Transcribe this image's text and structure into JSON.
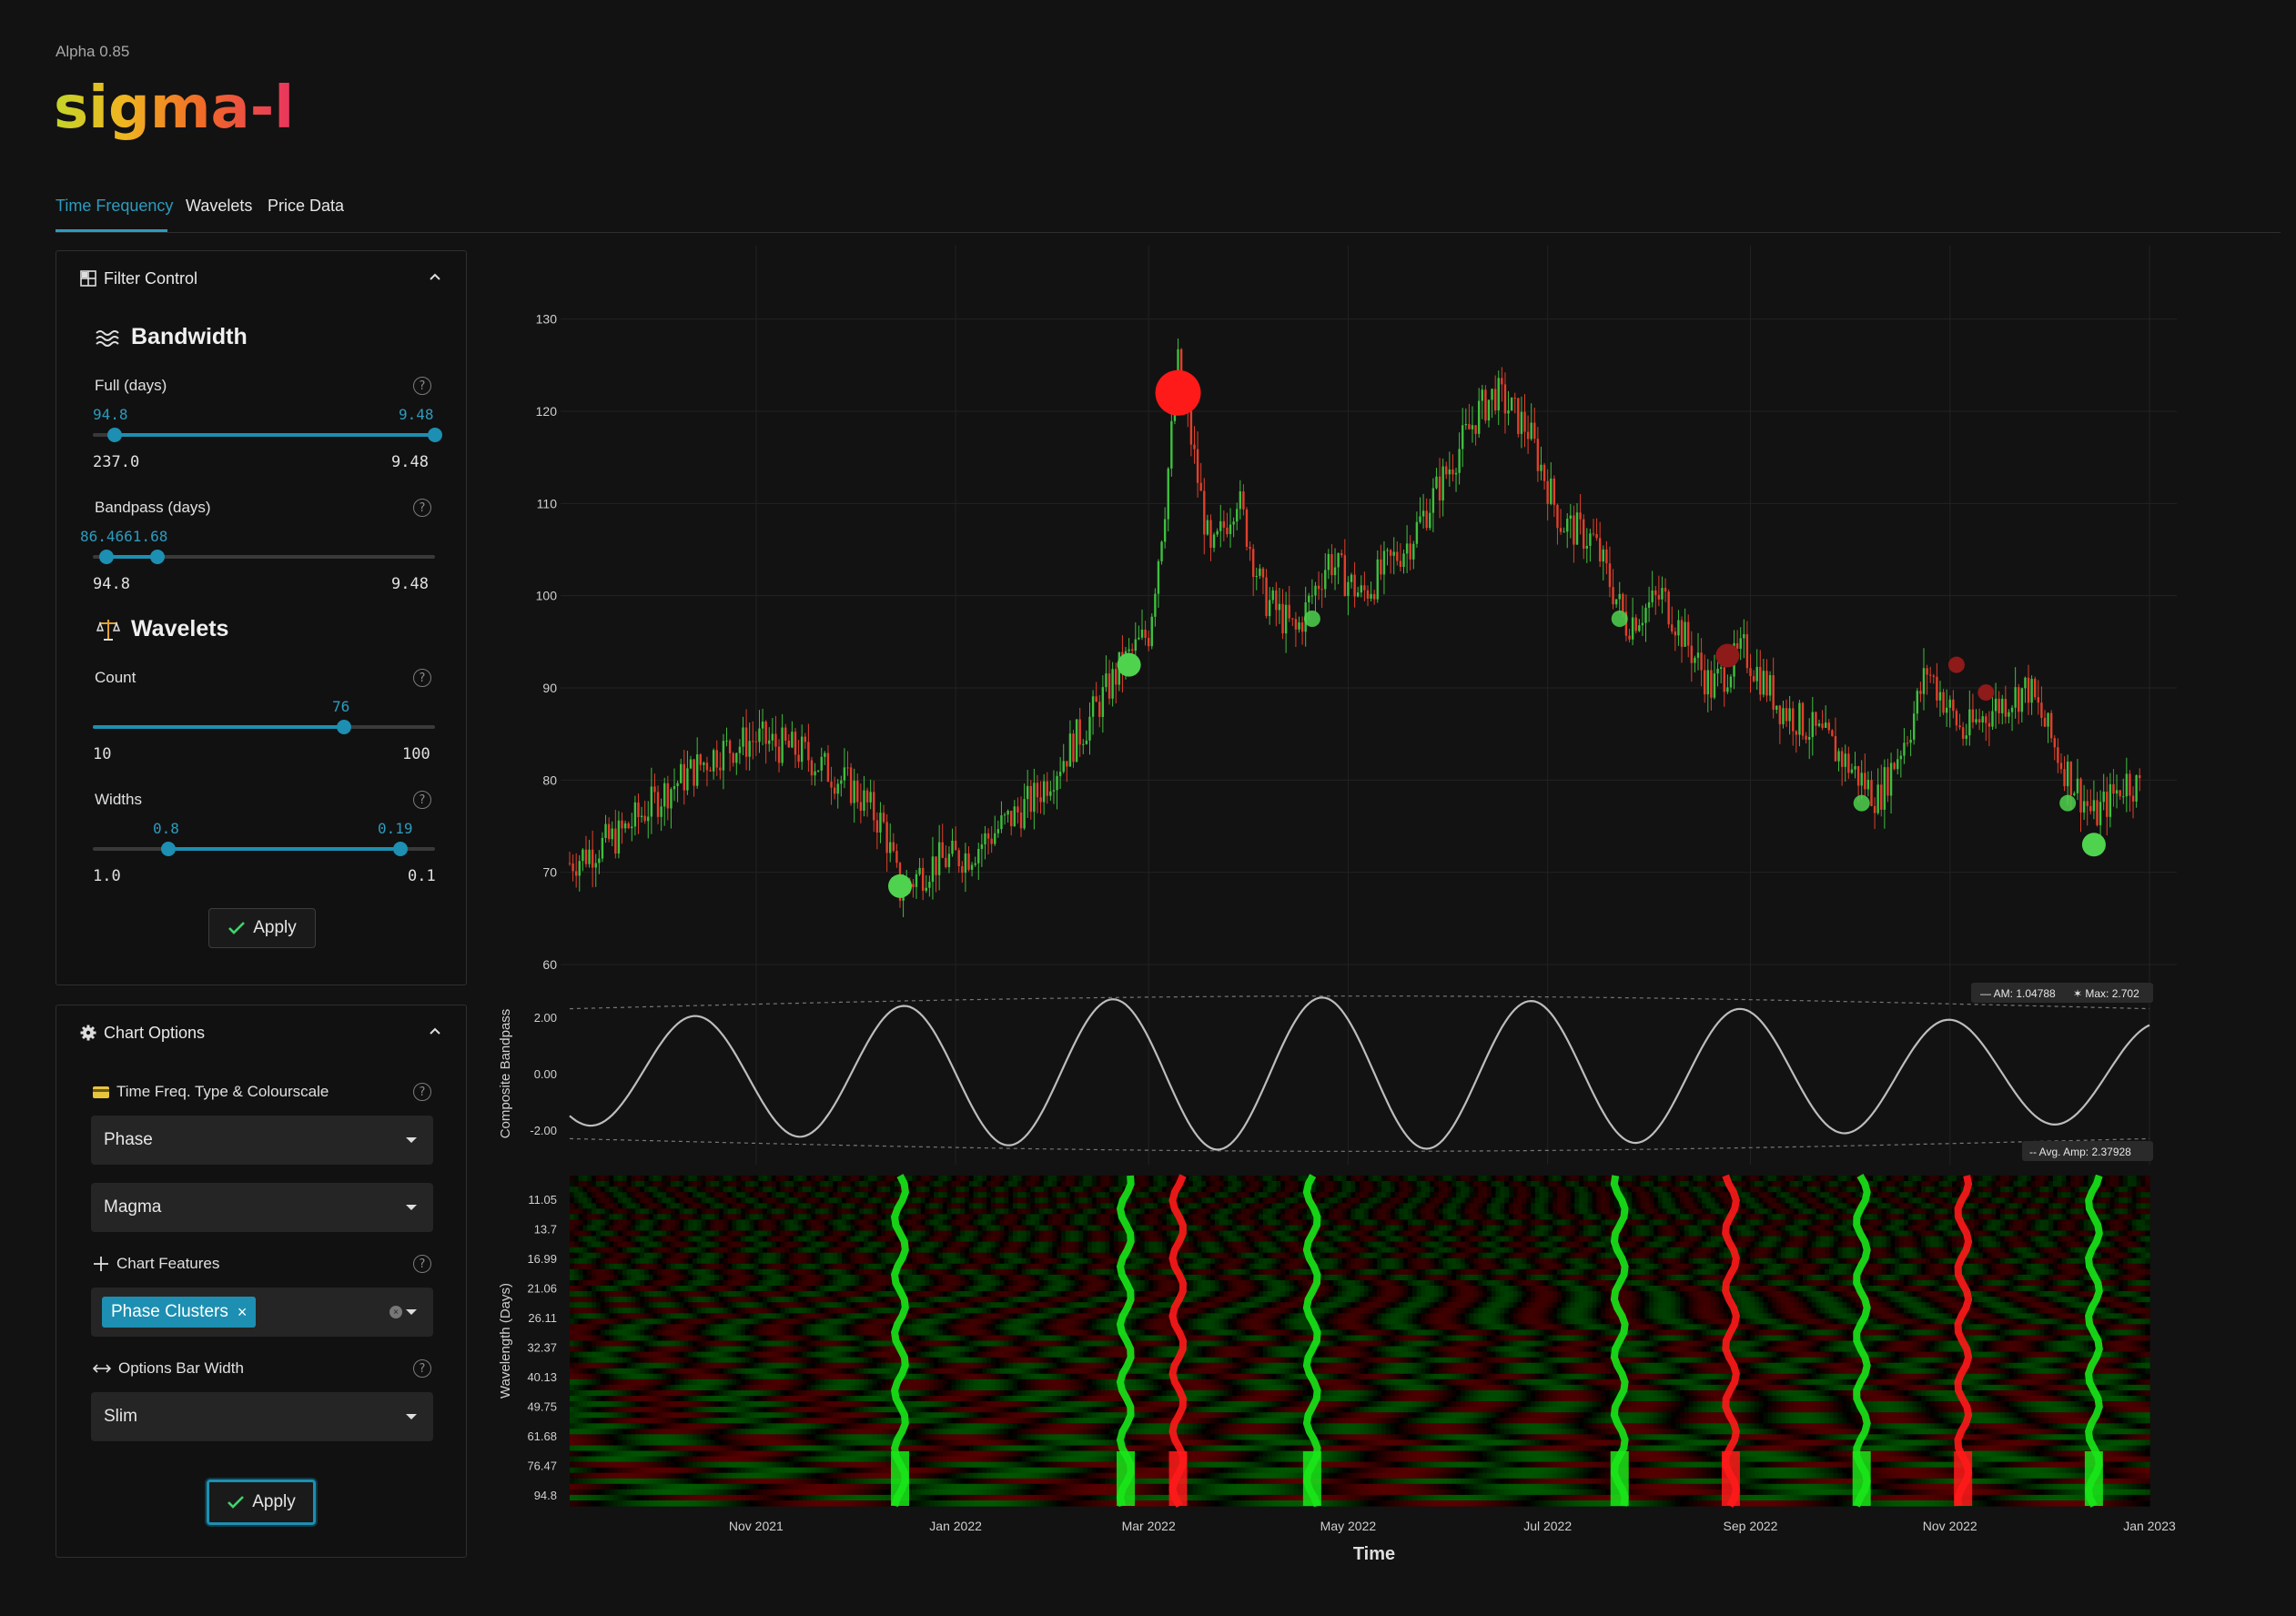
{
  "app": {
    "version": "Alpha 0.85",
    "logo": "sigma-l"
  },
  "tabs": [
    {
      "label": "Time Frequency",
      "active": true
    },
    {
      "label": "Wavelets",
      "active": false
    },
    {
      "label": "Price Data",
      "active": false
    }
  ],
  "filter_control": {
    "title": "Filter Control",
    "bandwidth": {
      "title": "Bandwidth",
      "full": {
        "label": "Full (days)",
        "value_left": "94.8",
        "value_right": "9.48",
        "min": "237.0",
        "max": "9.48",
        "range_fraction": [
          0.065,
          1.0
        ]
      },
      "bandpass": {
        "label": "Bandpass (days)",
        "value_text": "86.4661.68",
        "min": "94.8",
        "max": "9.48",
        "range_fraction": [
          0.04,
          0.19
        ]
      }
    },
    "wavelets": {
      "title": "Wavelets",
      "count": {
        "label": "Count",
        "value": "76",
        "min": "10",
        "max": "100",
        "fraction": 0.733
      },
      "widths": {
        "label": "Widths",
        "value_left": "0.8",
        "value_right": "0.19",
        "min": "1.0",
        "max": "0.1",
        "range_fraction": [
          0.222,
          0.9
        ]
      }
    },
    "apply_label": "Apply"
  },
  "chart_options": {
    "title": "Chart Options",
    "tf_type": {
      "label": "Time Freq. Type & Colourscale",
      "type_value": "Phase",
      "scale_value": "Magma"
    },
    "features": {
      "label": "Chart Features",
      "chips": [
        "Phase Clusters"
      ]
    },
    "bar_width": {
      "label": "Options Bar Width",
      "value": "Slim"
    },
    "apply_label": "Apply"
  },
  "colors": {
    "accent": "#1d8fb2",
    "up": "#3fbf3f",
    "down": "#e0402b",
    "marker_red": "#ff1a1a",
    "marker_green": "#4fd34f",
    "marker_dark_red": "#8e1a1a"
  },
  "chart_data": {
    "type": "candlestick",
    "x_range": [
      "2021-09-05",
      "2023-01-01"
    ],
    "x_ticks": [
      "Nov 2021",
      "Jan 2022",
      "Mar 2022",
      "May 2022",
      "Jul 2022",
      "Sep 2022",
      "Nov 2022",
      "Jan 2023"
    ],
    "x_tick_dates": [
      "2021-11-01",
      "2022-01-01",
      "2022-03-01",
      "2022-05-01",
      "2022-07-01",
      "2022-09-01",
      "2022-11-01",
      "2023-01-01"
    ],
    "x_label": "Time",
    "price": {
      "ylim": [
        60,
        135
      ],
      "yticks": [
        "60",
        "70",
        "80",
        "90",
        "100",
        "110",
        "120",
        "130"
      ],
      "path": [
        [
          "2021-09-05",
          71
        ],
        [
          "2021-09-20",
          74
        ],
        [
          "2021-10-05",
          79
        ],
        [
          "2021-10-20",
          83
        ],
        [
          "2021-11-01",
          84.5
        ],
        [
          "2021-11-15",
          83
        ],
        [
          "2021-12-01",
          79
        ],
        [
          "2021-12-10",
          75
        ],
        [
          "2021-12-15",
          68
        ],
        [
          "2021-12-25",
          71
        ],
        [
          "2022-01-05",
          72
        ],
        [
          "2022-01-25",
          78
        ],
        [
          "2022-02-10",
          86
        ],
        [
          "2022-02-20",
          92
        ],
        [
          "2022-03-01",
          96
        ],
        [
          "2022-03-06",
          110
        ],
        [
          "2022-03-10",
          125
        ],
        [
          "2022-03-14",
          117
        ],
        [
          "2022-03-20",
          104
        ],
        [
          "2022-03-28",
          111
        ],
        [
          "2022-04-05",
          100
        ],
        [
          "2022-04-15",
          96
        ],
        [
          "2022-04-25",
          104
        ],
        [
          "2022-05-05",
          100
        ],
        [
          "2022-05-20",
          106
        ],
        [
          "2022-06-01",
          114
        ],
        [
          "2022-06-10",
          120
        ],
        [
          "2022-06-15",
          122
        ],
        [
          "2022-06-25",
          118
        ],
        [
          "2022-07-05",
          108
        ],
        [
          "2022-07-15",
          106
        ],
        [
          "2022-07-25",
          97
        ],
        [
          "2022-08-05",
          100
        ],
        [
          "2022-08-20",
          90
        ],
        [
          "2022-08-30",
          94
        ],
        [
          "2022-09-10",
          88
        ],
        [
          "2022-09-25",
          84
        ],
        [
          "2022-10-10",
          78
        ],
        [
          "2022-10-20",
          86
        ],
        [
          "2022-10-25",
          92
        ],
        [
          "2022-11-05",
          85
        ],
        [
          "2022-11-15",
          88
        ],
        [
          "2022-11-25",
          90
        ],
        [
          "2022-12-05",
          82
        ],
        [
          "2022-12-15",
          76
        ],
        [
          "2022-12-25",
          80
        ],
        [
          "2023-01-01",
          78.5
        ]
      ],
      "markers": [
        {
          "date": "2021-12-15",
          "price": 68.5,
          "color": "green",
          "size": "medium"
        },
        {
          "date": "2022-02-23",
          "price": 92.5,
          "color": "green",
          "size": "medium"
        },
        {
          "date": "2022-03-10",
          "price": 122,
          "color": "red",
          "size": "large"
        },
        {
          "date": "2022-04-20",
          "price": 97.5,
          "color": "green",
          "size": "small"
        },
        {
          "date": "2022-07-23",
          "price": 97.5,
          "color": "green",
          "size": "small"
        },
        {
          "date": "2022-08-25",
          "price": 93.5,
          "color": "dark-red",
          "size": "medium"
        },
        {
          "date": "2022-10-05",
          "price": 77.5,
          "color": "green",
          "size": "small"
        },
        {
          "date": "2022-11-03",
          "price": 92.5,
          "color": "dark-red",
          "size": "small"
        },
        {
          "date": "2022-11-12",
          "price": 89.5,
          "color": "dark-red",
          "size": "small"
        },
        {
          "date": "2022-12-07",
          "price": 77.5,
          "color": "green",
          "size": "small"
        },
        {
          "date": "2022-12-15",
          "price": 73,
          "color": "green",
          "size": "medium"
        }
      ]
    },
    "bandpass": {
      "ylabel": "Composite Bandpass",
      "yticks": [
        "2.00",
        "0.00",
        "-2.00"
      ],
      "ylim": [
        -2.9,
        2.9
      ],
      "am_label": "AM: 1.04788",
      "max_label": "Max: 2.702",
      "avg_label": "Avg. Amp: 2.37928",
      "period_days": 64,
      "amplitude_range": [
        1.8,
        2.7
      ]
    },
    "heatmap": {
      "ylabel": "Wavelength (Days)",
      "yticks": [
        "11.05",
        "13.7",
        "16.99",
        "21.06",
        "26.11",
        "32.37",
        "40.13",
        "49.75",
        "61.68",
        "76.47",
        "94.8"
      ],
      "colorscale": "red-black-green",
      "clusters": [
        {
          "date": "2021-12-15",
          "color": "green"
        },
        {
          "date": "2022-02-22",
          "color": "green"
        },
        {
          "date": "2022-03-10",
          "color": "red"
        },
        {
          "date": "2022-04-20",
          "color": "green"
        },
        {
          "date": "2022-07-23",
          "color": "green"
        },
        {
          "date": "2022-08-26",
          "color": "red"
        },
        {
          "date": "2022-10-05",
          "color": "green"
        },
        {
          "date": "2022-11-05",
          "color": "red"
        },
        {
          "date": "2022-12-15",
          "color": "green"
        }
      ]
    }
  }
}
